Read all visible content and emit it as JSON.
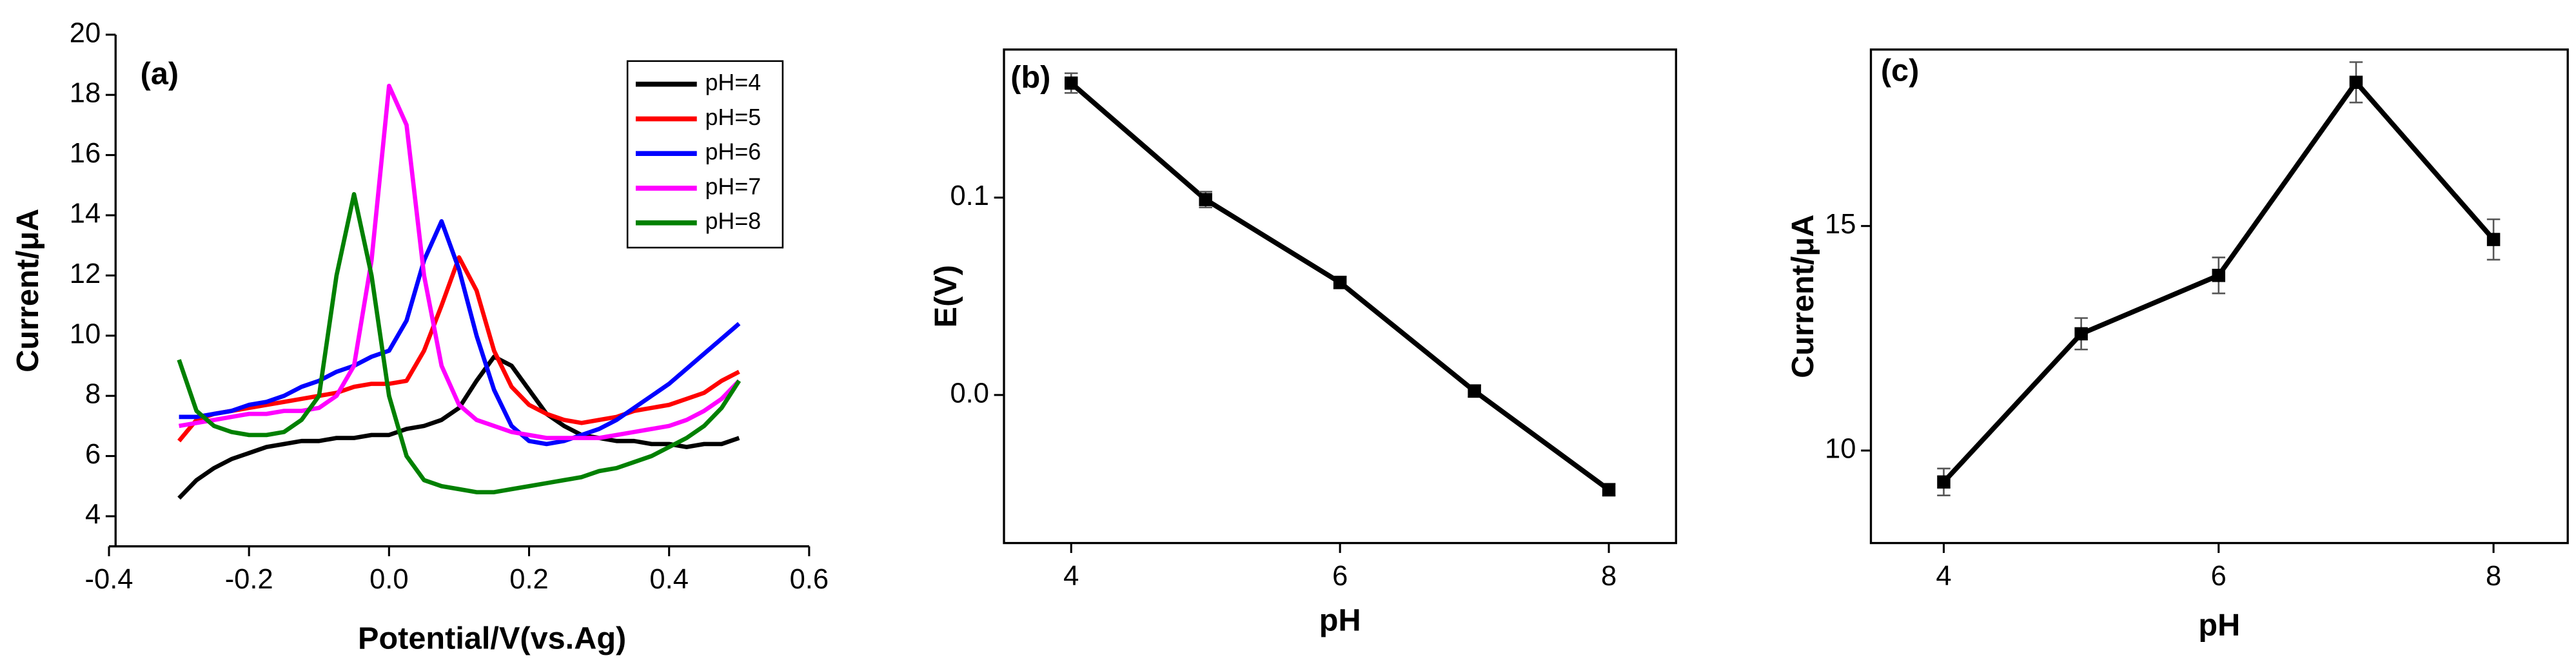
{
  "chart_data": [
    {
      "type": "line",
      "annotation": "(a)",
      "x_label": "Potential/V(vs.Ag)",
      "y_label": "Current/μA",
      "x": [
        -0.3,
        -0.275,
        -0.25,
        -0.225,
        -0.2,
        -0.175,
        -0.15,
        -0.125,
        -0.1,
        -0.075,
        -0.05,
        -0.025,
        0,
        0.025,
        0.05,
        0.075,
        0.1,
        0.125,
        0.15,
        0.175,
        0.2,
        0.225,
        0.25,
        0.275,
        0.3,
        0.325,
        0.35,
        0.375,
        0.4,
        0.425,
        0.45,
        0.475,
        0.5
      ],
      "series": [
        {
          "name": "pH=4",
          "color": "#000000",
          "values": [
            4.6,
            5.2,
            5.6,
            5.9,
            6.1,
            6.3,
            6.4,
            6.5,
            6.5,
            6.6,
            6.6,
            6.7,
            6.7,
            6.9,
            7.0,
            7.2,
            7.6,
            8.5,
            9.3,
            9.0,
            8.2,
            7.4,
            7.0,
            6.7,
            6.6,
            6.5,
            6.5,
            6.4,
            6.4,
            6.3,
            6.4,
            6.4,
            6.6
          ]
        },
        {
          "name": "pH=5",
          "color": "#ff0000",
          "values": [
            6.5,
            7.2,
            7.4,
            7.5,
            7.6,
            7.7,
            7.8,
            7.9,
            8.0,
            8.1,
            8.3,
            8.4,
            8.4,
            8.5,
            9.5,
            11.0,
            12.6,
            11.5,
            9.5,
            8.3,
            7.7,
            7.4,
            7.2,
            7.1,
            7.2,
            7.3,
            7.5,
            7.6,
            7.7,
            7.9,
            8.1,
            8.5,
            8.8
          ]
        },
        {
          "name": "pH=6",
          "color": "#0000ff",
          "values": [
            7.3,
            7.3,
            7.4,
            7.5,
            7.7,
            7.8,
            8.0,
            8.3,
            8.5,
            8.8,
            9.0,
            9.3,
            9.5,
            10.5,
            12.5,
            13.8,
            12.2,
            10.0,
            8.2,
            7.0,
            6.5,
            6.4,
            6.5,
            6.7,
            6.9,
            7.2,
            7.6,
            8.0,
            8.4,
            8.9,
            9.4,
            9.9,
            10.4
          ]
        },
        {
          "name": "pH=7",
          "color": "#ff00ff",
          "values": [
            7.0,
            7.1,
            7.2,
            7.3,
            7.4,
            7.4,
            7.5,
            7.5,
            7.6,
            8.0,
            9.0,
            12.5,
            18.3,
            17.0,
            12.0,
            9.0,
            7.7,
            7.2,
            7.0,
            6.8,
            6.7,
            6.6,
            6.6,
            6.6,
            6.6,
            6.7,
            6.8,
            6.9,
            7.0,
            7.2,
            7.5,
            7.9,
            8.5
          ]
        },
        {
          "name": "pH=8",
          "color": "#008000",
          "values": [
            9.2,
            7.5,
            7.0,
            6.8,
            6.7,
            6.7,
            6.8,
            7.2,
            8.0,
            12.0,
            14.7,
            12.0,
            8.0,
            6.0,
            5.2,
            5.0,
            4.9,
            4.8,
            4.8,
            4.9,
            5.0,
            5.1,
            5.2,
            5.3,
            5.5,
            5.6,
            5.8,
            6.0,
            6.3,
            6.6,
            7.0,
            7.6,
            8.5
          ]
        }
      ],
      "xlim": [
        -0.4,
        0.6
      ],
      "xticks": [
        -0.4,
        -0.2,
        {
          "value": 0,
          "label": "0.0"
        },
        0.2,
        0.4,
        0.6
      ],
      "ylim": [
        3,
        20
      ],
      "yticks": [
        4,
        6,
        8,
        10,
        12,
        14,
        16,
        18,
        20
      ],
      "legend": "upper right",
      "frame": false
    },
    {
      "type": "errorline",
      "annotation": "(b)",
      "x_label": "pH",
      "y_label": "E(V)",
      "color": "#000000",
      "x": [
        4,
        5,
        6,
        7,
        8
      ],
      "values": [
        0.158,
        0.099,
        0.057,
        0.002,
        -0.048
      ],
      "errors": [
        0.005,
        0.004,
        0.003,
        0.003,
        0.003
      ],
      "xlim": [
        3.5,
        8.5
      ],
      "xticks": [
        4,
        6,
        8
      ],
      "ylim": [
        -0.075,
        0.175
      ],
      "yticks": [
        {
          "value": 0,
          "label": "0.0"
        },
        0.1
      ],
      "frame": true
    },
    {
      "type": "errorline",
      "annotation": "(c)",
      "x_label": "pH",
      "y_label": "Current/μA",
      "color": "#000000",
      "x": [
        4,
        5,
        6,
        7,
        8
      ],
      "values": [
        9.3,
        12.6,
        13.9,
        18.2,
        14.7
      ],
      "errors": [
        0.3,
        0.35,
        0.4,
        0.45,
        0.45
      ],
      "xlim": [
        3.47,
        8.54
      ],
      "xticks": [
        4,
        6,
        8
      ],
      "ylim": [
        7.94,
        18.93
      ],
      "yticks": [
        10,
        15
      ],
      "frame": true
    }
  ]
}
